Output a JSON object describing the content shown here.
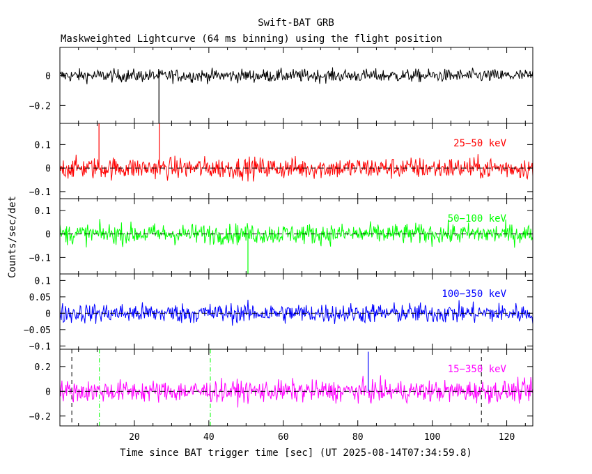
{
  "title": "Swift-BAT GRB",
  "subtitle": "Maskweighted Lightcurve (64 ms binning) using the flight position",
  "xlabel": "Time since BAT trigger time [sec] (UT 2025-08-14T07:34:59.8)",
  "ylabel": "Counts/sec/det",
  "colors": {
    "black": "#000000",
    "red": "#ff0000",
    "green": "#00ff00",
    "blue": "#0000ff",
    "magenta": "#ff00ff"
  },
  "chart_data": {
    "type": "line",
    "binning_sec": 0.064,
    "xlim": [
      0,
      127
    ],
    "x_ticks": [
      20,
      40,
      60,
      80,
      100,
      120
    ],
    "x_tick_labels": [
      "20",
      "40",
      "60",
      "80",
      "100",
      "120"
    ],
    "marker_lines": [
      {
        "x": 3.2,
        "style": "dashed",
        "color": "#000000"
      },
      {
        "x": 10.6,
        "style": "dash-dot",
        "color": "#00ff00"
      },
      {
        "x": 40.4,
        "style": "dash-dot",
        "color": "#00ff00"
      },
      {
        "x": 113.2,
        "style": "dashed",
        "color": "#000000"
      }
    ],
    "series": [
      {
        "band": "",
        "color": "#000000",
        "ylim": [
          -0.32,
          0.19
        ],
        "y_ticks": [
          0,
          -0.2
        ],
        "y_tick_labels": [
          "0",
          "−0.2"
        ],
        "noise_sigma": 0.04,
        "zero_line": false,
        "spikes": [
          {
            "x": 26.6,
            "y": -0.32
          }
        ]
      },
      {
        "band": "25−50 keV",
        "color": "#ff0000",
        "ylim": [
          -0.13,
          0.19
        ],
        "y_ticks": [
          0.1,
          0,
          -0.1
        ],
        "y_tick_labels": [
          "0.1",
          "0",
          "−0.1"
        ],
        "noise_sigma": 0.042,
        "zero_line": true,
        "spikes": [
          {
            "x": 10.5,
            "y": 0.19
          },
          {
            "x": 26.7,
            "y": 0.19
          }
        ]
      },
      {
        "band": "50−100 keV",
        "color": "#00ff00",
        "ylim": [
          -0.17,
          0.15
        ],
        "y_ticks": [
          0.1,
          0,
          -0.1
        ],
        "y_tick_labels": [
          "0.1",
          "0",
          "−0.1"
        ],
        "noise_sigma": 0.04,
        "zero_line": true,
        "spikes": [
          {
            "x": 50.5,
            "y": -0.17
          }
        ]
      },
      {
        "band": "100−350 keV",
        "color": "#0000ff",
        "ylim": [
          -0.11,
          0.12
        ],
        "y_ticks": [
          0.1,
          0.05,
          0,
          -0.05,
          -0.1
        ],
        "y_tick_labels": [
          "0.1",
          "0.05",
          "0",
          "−0.05",
          "−0.1"
        ],
        "noise_sigma": 0.028,
        "zero_line": true,
        "spikes": []
      },
      {
        "band": "15−350 keV",
        "color": "#ff00ff",
        "ylim": [
          -0.28,
          0.34
        ],
        "y_ticks": [
          0.2,
          0,
          -0.2
        ],
        "y_tick_labels": [
          "0.2",
          "0",
          "−0.2"
        ],
        "noise_sigma": 0.08,
        "zero_line": true,
        "spikes": [
          {
            "x": 82.8,
            "y": 0.32,
            "color": "#0000ff"
          }
        ]
      }
    ]
  }
}
